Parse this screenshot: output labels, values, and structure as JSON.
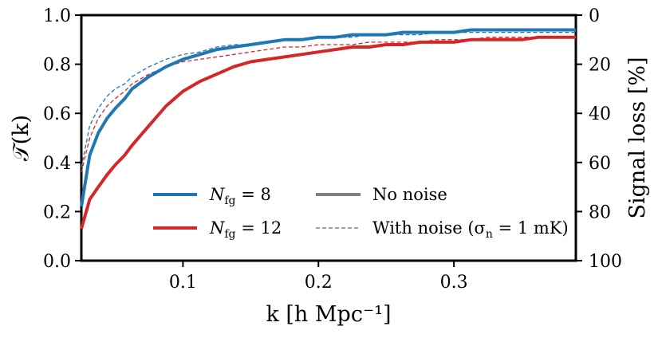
{
  "chart_data": {
    "type": "line",
    "xlabel": "k [h Mpc⁻¹]",
    "ylabel": "𝒯(k)",
    "ylabel_right": "Signal loss [%]",
    "xlim": [
      0.025,
      0.39
    ],
    "ylim": [
      0.0,
      1.0
    ],
    "right_ylim_inverted": [
      100,
      0
    ],
    "x_ticks": [
      {
        "value": 0.1,
        "label": "0.1"
      },
      {
        "value": 0.2,
        "label": "0.2"
      },
      {
        "value": 0.3,
        "label": "0.3"
      }
    ],
    "y_ticks": [
      {
        "value": 0.0,
        "label": "0.0"
      },
      {
        "value": 0.2,
        "label": "0.2"
      },
      {
        "value": 0.4,
        "label": "0.4"
      },
      {
        "value": 0.6,
        "label": "0.6"
      },
      {
        "value": 0.8,
        "label": "0.8"
      },
      {
        "value": 1.0,
        "label": "1.0"
      }
    ],
    "y_right_ticks": [
      {
        "value": 0,
        "label": "0"
      },
      {
        "value": 20,
        "label": "20"
      },
      {
        "value": 40,
        "label": "40"
      },
      {
        "value": 60,
        "label": "60"
      },
      {
        "value": 80,
        "label": "80"
      },
      {
        "value": 100,
        "label": "100"
      }
    ],
    "x": [
      0.025,
      0.0312,
      0.0375,
      0.044,
      0.05,
      0.057,
      0.0625,
      0.075,
      0.0875,
      0.1,
      0.1125,
      0.125,
      0.1375,
      0.15,
      0.1625,
      0.175,
      0.1875,
      0.2,
      0.2125,
      0.225,
      0.2375,
      0.25,
      0.2625,
      0.275,
      0.2875,
      0.3,
      0.3125,
      0.325,
      0.3375,
      0.35,
      0.3625,
      0.375,
      0.39
    ],
    "series": [
      {
        "name": "N_fg = 8, no noise",
        "color": "#1f77b4",
        "style": "solid",
        "values": [
          0.22,
          0.43,
          0.52,
          0.58,
          0.62,
          0.66,
          0.7,
          0.75,
          0.79,
          0.82,
          0.84,
          0.86,
          0.87,
          0.88,
          0.89,
          0.9,
          0.9,
          0.91,
          0.91,
          0.92,
          0.92,
          0.92,
          0.93,
          0.93,
          0.93,
          0.93,
          0.94,
          0.94,
          0.94,
          0.94,
          0.94,
          0.94,
          0.94
        ]
      },
      {
        "name": "N_fg = 8, with noise",
        "color": "#1f77b4",
        "style": "dashed",
        "values": [
          0.38,
          0.55,
          0.62,
          0.67,
          0.7,
          0.72,
          0.75,
          0.79,
          0.82,
          0.84,
          0.85,
          0.87,
          0.88,
          0.88,
          0.89,
          0.9,
          0.9,
          0.91,
          0.91,
          0.91,
          0.92,
          0.92,
          0.92,
          0.92,
          0.93,
          0.93,
          0.93,
          0.93,
          0.93,
          0.93,
          0.93,
          0.93,
          0.93
        ]
      },
      {
        "name": "N_fg = 12, no noise",
        "color": "#d62728",
        "style": "solid",
        "values": [
          0.13,
          0.25,
          0.3,
          0.35,
          0.39,
          0.43,
          0.47,
          0.55,
          0.63,
          0.69,
          0.73,
          0.76,
          0.79,
          0.81,
          0.82,
          0.83,
          0.84,
          0.85,
          0.86,
          0.87,
          0.87,
          0.88,
          0.88,
          0.89,
          0.89,
          0.89,
          0.9,
          0.9,
          0.9,
          0.9,
          0.91,
          0.91,
          0.91
        ]
      },
      {
        "name": "N_fg = 12, with noise",
        "color": "#d62728",
        "style": "dashed",
        "values": [
          0.36,
          0.5,
          0.58,
          0.63,
          0.66,
          0.69,
          0.72,
          0.76,
          0.79,
          0.81,
          0.82,
          0.83,
          0.84,
          0.85,
          0.86,
          0.87,
          0.87,
          0.88,
          0.88,
          0.88,
          0.89,
          0.89,
          0.89,
          0.89,
          0.9,
          0.9,
          0.9,
          0.91,
          0.91,
          0.91,
          0.91,
          0.91,
          0.91
        ]
      }
    ],
    "legend": {
      "position": "lower center",
      "entries": [
        {
          "label_main": "N",
          "label_sub": "fg",
          "label_rest": " = 8",
          "color": "#1f77b4",
          "style": "thick"
        },
        {
          "label_main": "N",
          "label_sub": "fg",
          "label_rest": " = 12",
          "color": "#d62728",
          "style": "thick"
        },
        {
          "label": "No noise",
          "color": "#808080",
          "style": "thick"
        },
        {
          "label": "With noise (σ",
          "label_sub": "n",
          "label_rest": " = 1 mK)",
          "color": "#808080",
          "style": "dashed"
        }
      ]
    }
  }
}
